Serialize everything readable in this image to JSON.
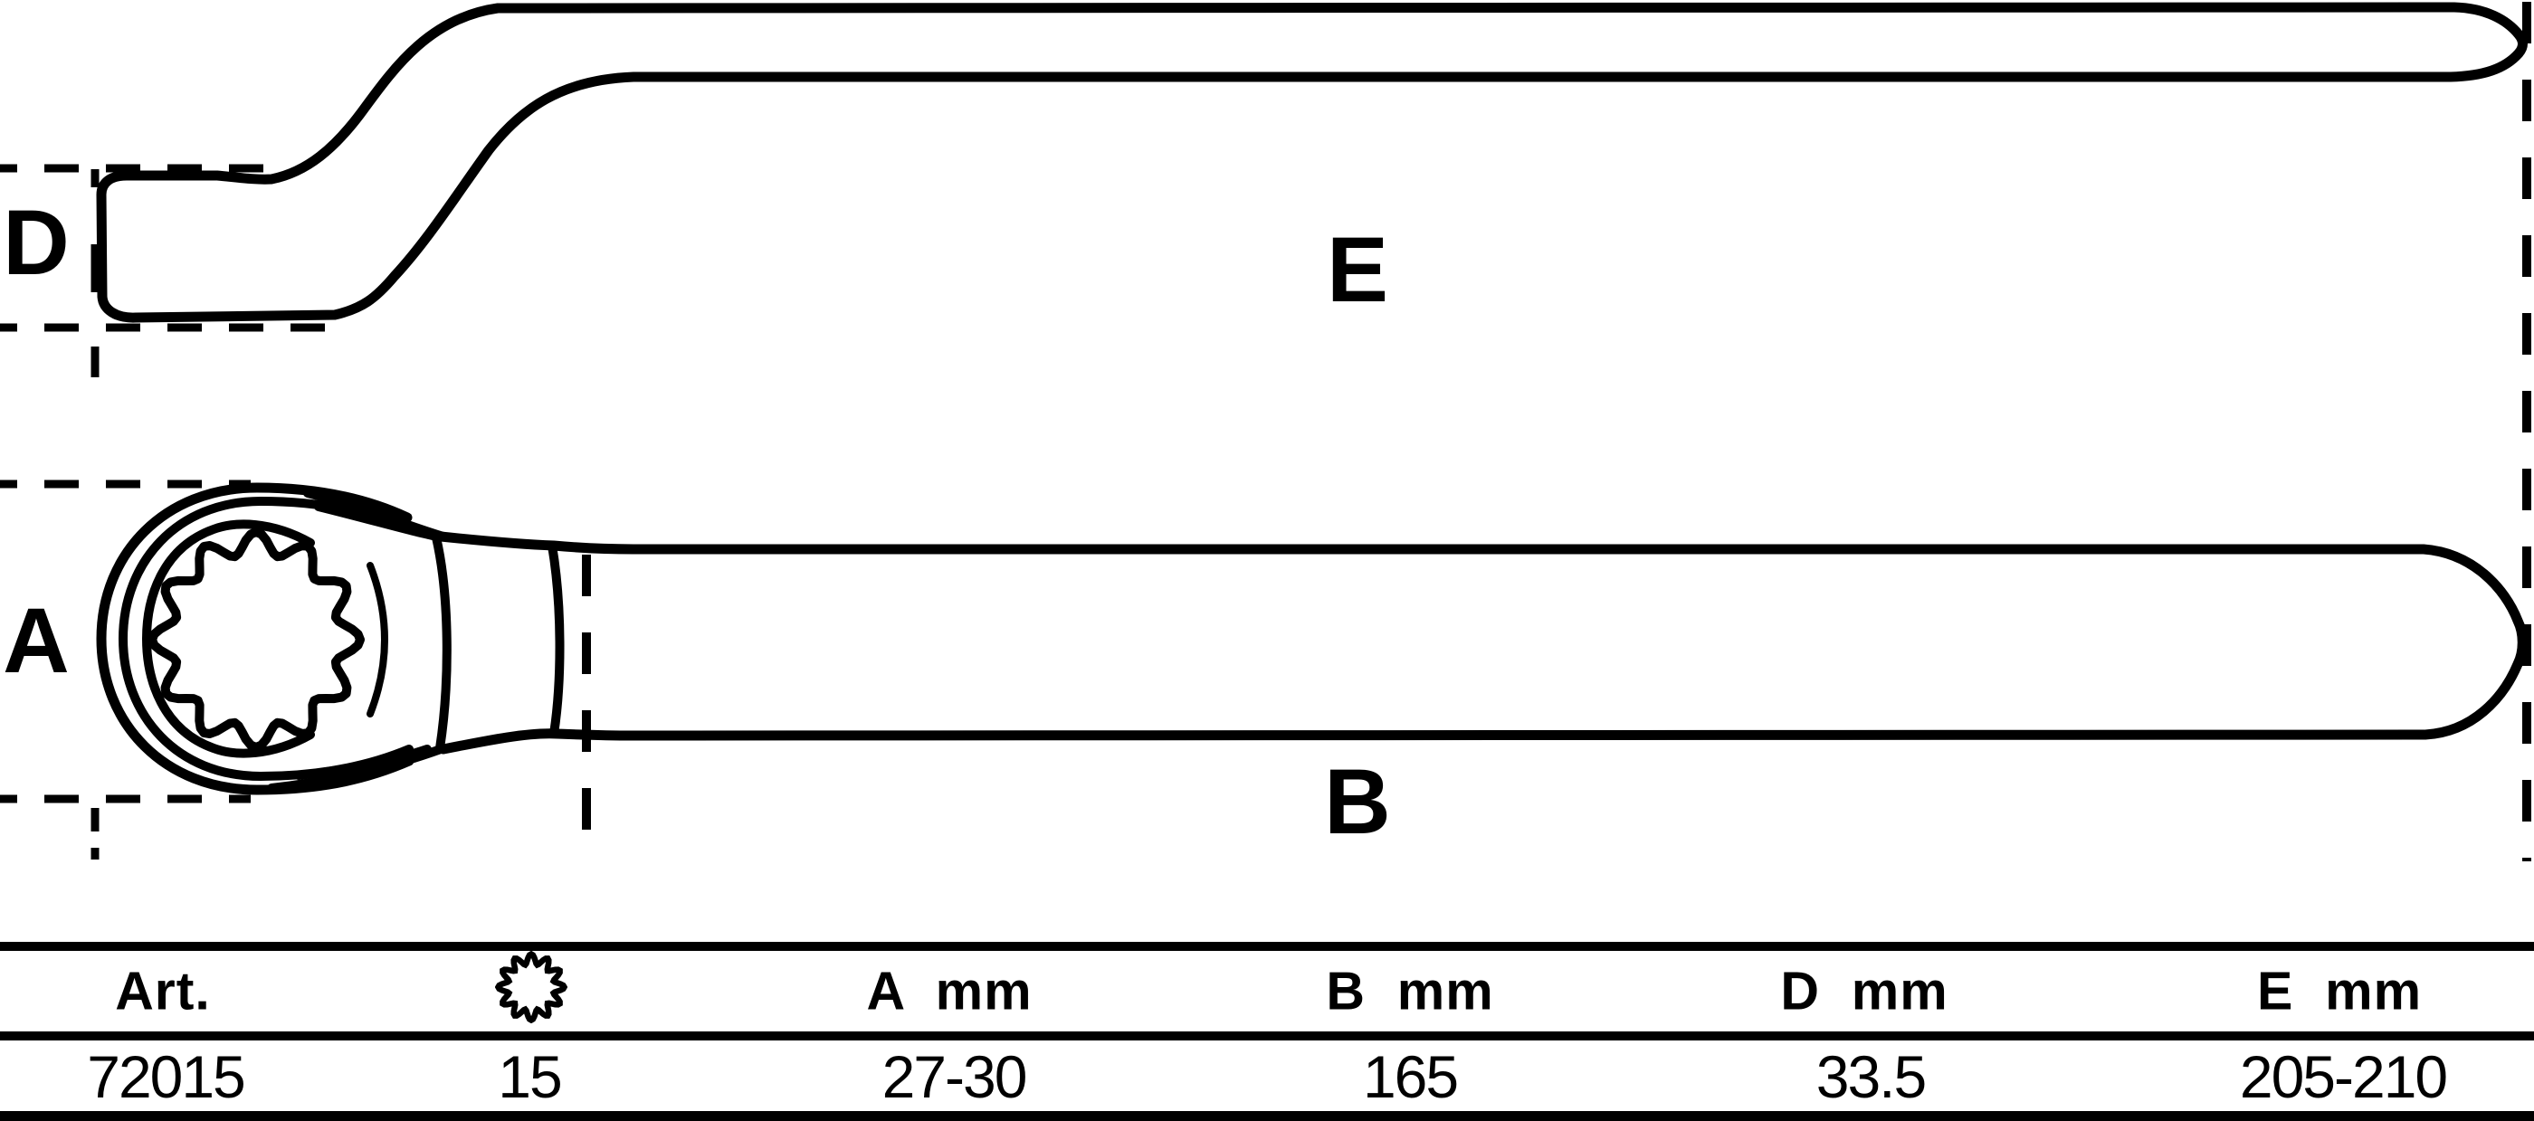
{
  "theme": {
    "ink": "#000000",
    "background": "#ffffff"
  },
  "diagram": {
    "labels": {
      "d": "D",
      "e": "E",
      "a": "A",
      "b": "B"
    }
  },
  "table": {
    "headers": {
      "art": "Art.",
      "size_icon": "12-point-ring-icon",
      "a": "A  mm",
      "b": "B  mm",
      "d": "D  mm",
      "e": "E  mm"
    },
    "row": {
      "art": "72015",
      "size": "15",
      "a": "27-30",
      "b": "165",
      "d": "33.5",
      "e": "205-210"
    }
  }
}
